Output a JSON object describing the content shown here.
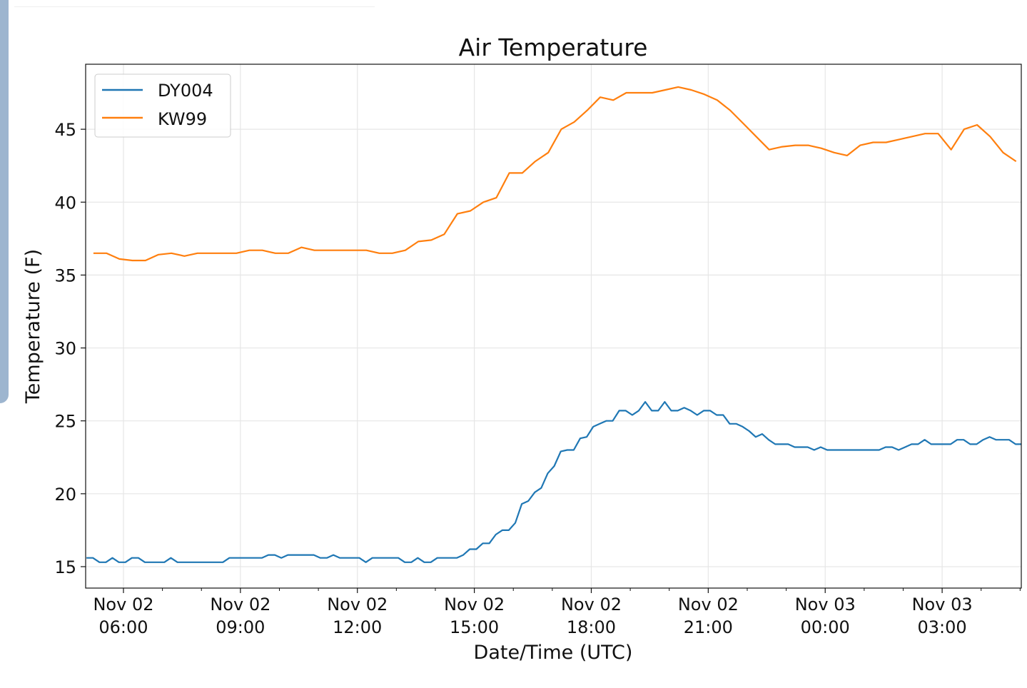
{
  "chart_data": {
    "type": "line",
    "title": "Air Temperature",
    "xlabel": "Date/Time (UTC)",
    "ylabel": "Temperature (F)",
    "x_units": "hours since Nov 02 00:00 UTC",
    "xlim": [
      5.03,
      29.03
    ],
    "ylim": [
      13.53,
      49.46
    ],
    "grid": true,
    "legend_position": "top-left",
    "yticks": [
      15,
      20,
      25,
      30,
      35,
      40,
      45
    ],
    "ytick_labels": [
      "15",
      "20",
      "25",
      "30",
      "35",
      "40",
      "45"
    ],
    "xticks": [
      6,
      9,
      12,
      15,
      18,
      21,
      24,
      27
    ],
    "xtick_labels": [
      [
        "Nov 02",
        "06:00"
      ],
      [
        "Nov 02",
        "09:00"
      ],
      [
        "Nov 02",
        "12:00"
      ],
      [
        "Nov 02",
        "15:00"
      ],
      [
        "Nov 02",
        "18:00"
      ],
      [
        "Nov 02",
        "21:00"
      ],
      [
        "Nov 03",
        "00:00"
      ],
      [
        "Nov 03",
        "03:00"
      ]
    ],
    "series": [
      {
        "name": "DY004",
        "color": "#1f77b4",
        "x_start": 5.05,
        "x_step": 0.16667,
        "values": [
          15.6,
          15.6,
          15.3,
          15.3,
          15.6,
          15.3,
          15.3,
          15.6,
          15.6,
          15.3,
          15.3,
          15.3,
          15.3,
          15.6,
          15.3,
          15.3,
          15.3,
          15.3,
          15.3,
          15.3,
          15.3,
          15.3,
          15.6,
          15.6,
          15.6,
          15.6,
          15.6,
          15.6,
          15.8,
          15.8,
          15.6,
          15.8,
          15.8,
          15.8,
          15.8,
          15.8,
          15.6,
          15.6,
          15.8,
          15.6,
          15.6,
          15.6,
          15.6,
          15.3,
          15.6,
          15.6,
          15.6,
          15.6,
          15.6,
          15.3,
          15.3,
          15.6,
          15.3,
          15.3,
          15.6,
          15.6,
          15.6,
          15.6,
          15.8,
          16.2,
          16.2,
          16.6,
          16.6,
          17.2,
          17.5,
          17.5,
          18.0,
          19.3,
          19.5,
          20.1,
          20.4,
          21.4,
          21.9,
          22.9,
          23.0,
          23.0,
          23.8,
          23.9,
          24.6,
          24.8,
          25.0,
          25.0,
          25.7,
          25.7,
          25.4,
          25.7,
          26.3,
          25.7,
          25.7,
          26.3,
          25.7,
          25.7,
          25.9,
          25.7,
          25.4,
          25.7,
          25.7,
          25.4,
          25.4,
          24.8,
          24.8,
          24.6,
          24.3,
          23.9,
          24.1,
          23.7,
          23.4,
          23.4,
          23.4,
          23.2,
          23.2,
          23.2,
          23.0,
          23.2,
          23.0,
          23.0,
          23.0,
          23.0,
          23.0,
          23.0,
          23.0,
          23.0,
          23.0,
          23.2,
          23.2,
          23.0,
          23.2,
          23.4,
          23.4,
          23.7,
          23.4,
          23.4,
          23.4,
          23.4,
          23.7,
          23.7,
          23.4,
          23.4,
          23.7,
          23.9,
          23.7,
          23.7,
          23.7,
          23.4,
          23.4
        ]
      },
      {
        "name": "KW99",
        "color": "#ff7f0e",
        "x_start": 5.23,
        "x_step": 0.33333,
        "values": [
          36.5,
          36.5,
          36.1,
          36.0,
          36.0,
          36.4,
          36.5,
          36.3,
          36.5,
          36.5,
          36.5,
          36.5,
          36.7,
          36.7,
          36.5,
          36.5,
          36.9,
          36.7,
          36.7,
          36.7,
          36.7,
          36.7,
          36.5,
          36.5,
          36.7,
          37.3,
          37.4,
          37.8,
          39.2,
          39.4,
          40.0,
          40.3,
          42.0,
          42.0,
          42.8,
          43.4,
          45.0,
          45.5,
          46.3,
          47.2,
          47.0,
          47.5,
          47.5,
          47.5,
          47.7,
          47.9,
          47.7,
          47.4,
          47.0,
          46.3,
          45.4,
          44.5,
          43.6,
          43.8,
          43.9,
          43.9,
          43.7,
          43.4,
          43.2,
          43.9,
          44.1,
          44.1,
          44.3,
          44.5,
          44.7,
          44.7,
          43.6,
          45.0,
          45.3,
          44.5,
          43.4,
          42.8
        ]
      }
    ]
  }
}
